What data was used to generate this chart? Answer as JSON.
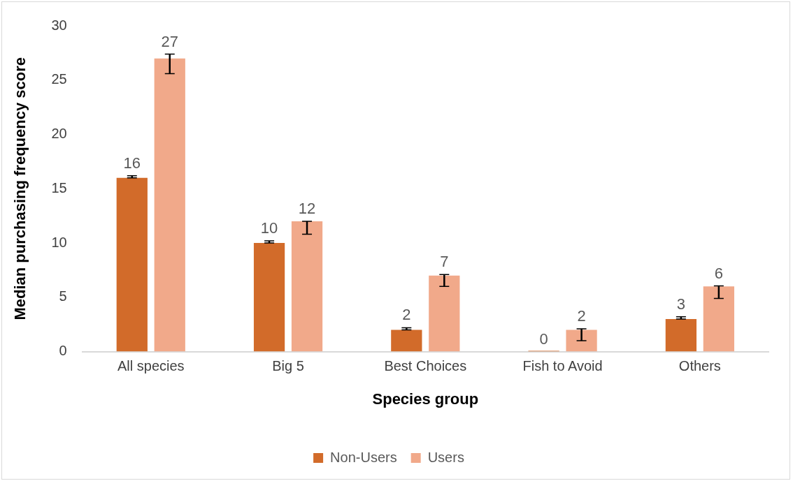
{
  "chart_data": {
    "type": "bar",
    "xlabel": "Species group",
    "ylabel": "Median purchasing frequency score",
    "categories": [
      "All species",
      "Big 5",
      "Best Choices",
      "Fish to Avoid",
      "Others"
    ],
    "series": [
      {
        "name": "Non-Users",
        "color": "#d26b2a",
        "values": [
          16,
          10,
          2,
          0,
          3
        ],
        "errors": [
          [
            16,
            16.2
          ],
          [
            10,
            10.2
          ],
          [
            2,
            2.2
          ],
          null,
          [
            3,
            3.2
          ]
        ]
      },
      {
        "name": "Users",
        "color": "#f1a98a",
        "values": [
          27,
          12,
          7,
          2,
          6
        ],
        "errors": [
          [
            25.6,
            27.4
          ],
          [
            10.8,
            12
          ],
          [
            6,
            7.1
          ],
          [
            1,
            2.1
          ],
          [
            4.9,
            6.05
          ]
        ]
      }
    ],
    "ylim": [
      0,
      30
    ],
    "yticks": [
      0,
      5,
      10,
      15,
      20,
      25,
      30
    ],
    "grid": false,
    "legend": "bottom",
    "data_labels": true
  }
}
